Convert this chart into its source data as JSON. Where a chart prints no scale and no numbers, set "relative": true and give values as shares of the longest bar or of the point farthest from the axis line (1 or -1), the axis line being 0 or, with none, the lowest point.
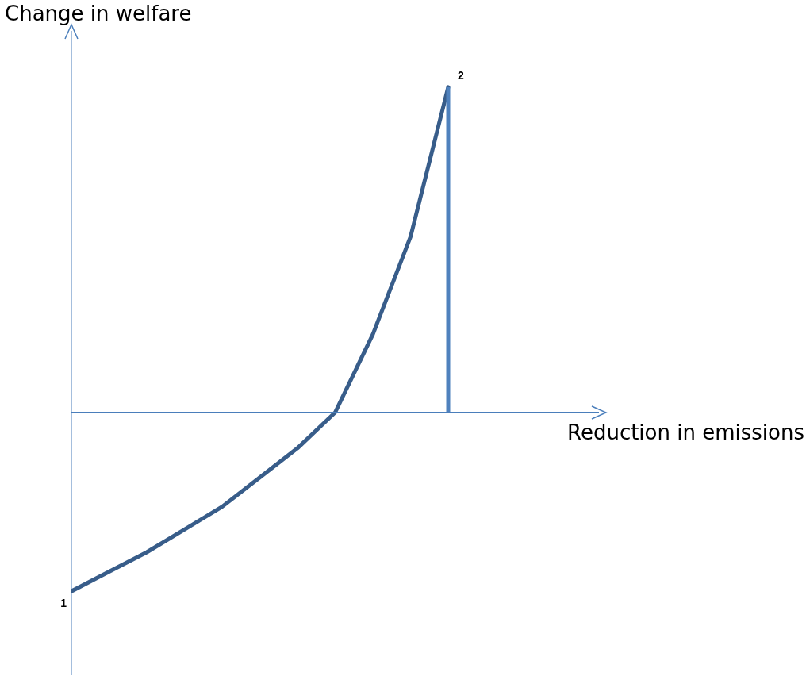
{
  "chart_data": {
    "type": "line",
    "relative": true,
    "xlabel": "Reduction in emissions",
    "ylabel": "Change in welfare",
    "categories": [
      null,
      null,
      null,
      null,
      null,
      null,
      null,
      null,
      null,
      null,
      null
    ],
    "series": [
      {
        "color": "#385d8a",
        "values": [
          -0.55,
          -0.49,
          -0.43,
          -0.36,
          -0.29,
          -0.2,
          -0.11,
          0.0,
          0.24,
          0.54,
          1.0
        ]
      }
    ],
    "annotations": [
      "1",
      "2"
    ],
    "ref_lines": [
      {
        "axis": "y",
        "value": 0,
        "color": "#4a7ebb"
      }
    ],
    "legend": false,
    "grid": false,
    "marker": "none",
    "line_style": "solid"
  }
}
